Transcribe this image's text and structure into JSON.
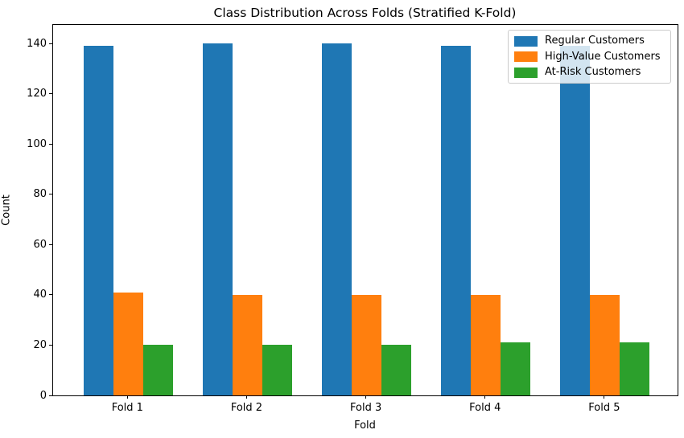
{
  "chart_data": {
    "type": "bar",
    "title": "Class Distribution Across Folds (Stratified K-Fold)",
    "xlabel": "Fold",
    "ylabel": "Count",
    "categories": [
      "Fold 1",
      "Fold 2",
      "Fold 3",
      "Fold 4",
      "Fold 5"
    ],
    "series": [
      {
        "name": "Regular Customers",
        "color": "#1f77b4",
        "values": [
          139,
          140,
          140,
          139,
          139
        ]
      },
      {
        "name": "High-Value Customers",
        "color": "#ff7f0e",
        "values": [
          41,
          40,
          40,
          40,
          40
        ]
      },
      {
        "name": "At-Risk Customers",
        "color": "#2ca02c",
        "values": [
          20,
          20,
          20,
          21,
          21
        ]
      }
    ],
    "yticks": [
      0,
      20,
      40,
      60,
      80,
      100,
      120,
      140
    ],
    "ylim": [
      0,
      147.7
    ],
    "xlim": [
      -0.63,
      4.615
    ],
    "bar_width": 0.25,
    "grid": false,
    "legend_position": "upper right",
    "axis_color": "#000000",
    "legend_border_color": "#cbcbcb"
  }
}
